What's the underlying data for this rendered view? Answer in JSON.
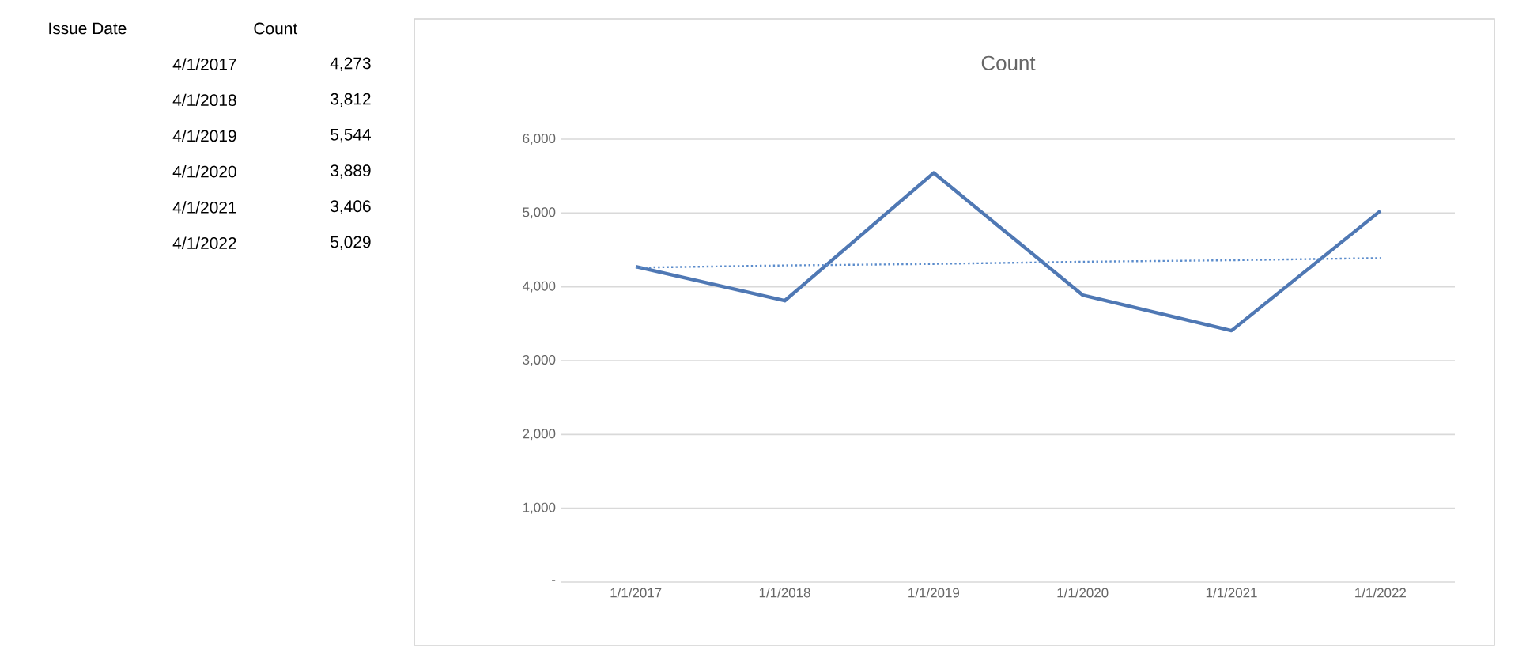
{
  "chart_data": [
    {
      "type": "other",
      "annotations": [
        "Issue Date",
        "Count",
        "4/1/2017",
        "4,273",
        "4/1/2018",
        "3,812",
        "4/1/2019",
        "5,544",
        "4/1/2020",
        "3,889",
        "4/1/2021",
        "3,406",
        "4/1/2022",
        "5,029"
      ]
    },
    {
      "type": "line",
      "title": "Count",
      "categories": [
        "1/1/2017",
        "1/1/2018",
        "1/1/2019",
        "1/1/2020",
        "1/1/2021",
        "1/1/2022"
      ],
      "series": [
        {
          "color": "#4f78b4",
          "values": [
            4273,
            3812,
            5544,
            3889,
            3406,
            5029
          ]
        },
        {
          "type": "line",
          "line_style": "dotted",
          "color": "#5b8ccc",
          "values": [
            4260,
            4290,
            4310,
            4340,
            4360,
            4390
          ]
        }
      ],
      "ylim": [
        0,
        6000
      ],
      "yticks": [
        {
          "value": 0,
          "label": "-"
        },
        {
          "value": 1000,
          "label": "1,000"
        },
        {
          "value": 2000,
          "label": "2,000"
        },
        {
          "value": 3000,
          "label": "3,000"
        },
        {
          "value": 4000,
          "label": "4,000"
        },
        {
          "value": 5000,
          "label": "5,000"
        },
        {
          "value": 6000,
          "label": "6,000"
        }
      ],
      "grid": "y",
      "marker": "none",
      "line_style": "solid"
    }
  ]
}
